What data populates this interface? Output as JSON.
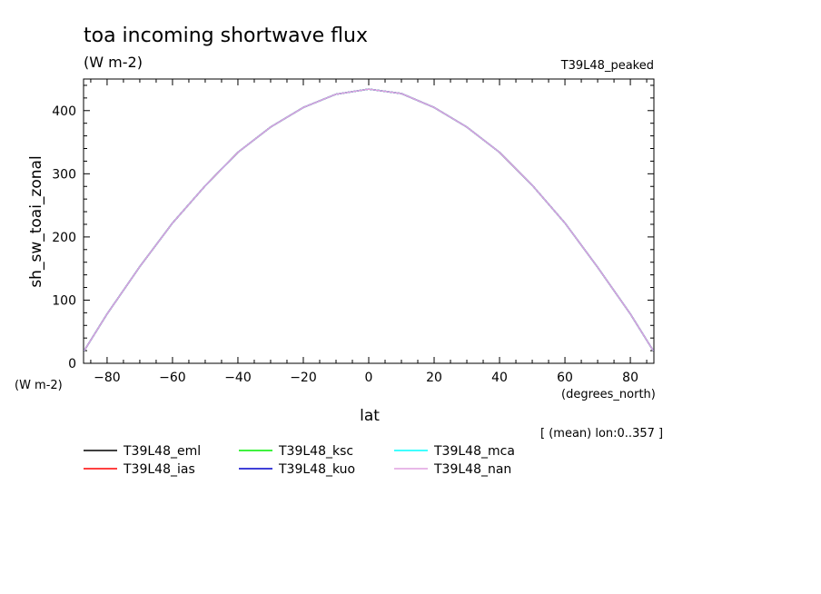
{
  "header": {
    "title": "toa incoming shortwave flux",
    "units": "(W m-2)",
    "experiment": "T39L48_peaked",
    "y_units": "(W m-2)",
    "x_units": "(degrees_north)",
    "region": "[ (mean) lon:0..357 ]"
  },
  "chart_data": {
    "type": "line",
    "xlabel": "lat",
    "ylabel": "sh_sw_toai_zonal",
    "xlim": [
      -87.2,
      87.2
    ],
    "ylim": [
      0,
      450
    ],
    "xticks": [
      -80,
      -60,
      -40,
      -20,
      0,
      20,
      40,
      60,
      80
    ],
    "yticks": [
      0,
      100,
      200,
      300,
      400
    ],
    "x": [
      -87,
      -80,
      -70,
      -60,
      -50,
      -40,
      -30,
      -20,
      -10,
      0,
      10,
      20,
      30,
      40,
      50,
      60,
      70,
      80,
      87
    ],
    "series": [
      {
        "name": "T39L48_eml",
        "color": "#000000",
        "values": [
          20,
          78,
          153,
          222,
          281,
          334,
          374,
          405,
          426,
          434,
          427,
          405,
          374,
          334,
          282,
          222,
          152,
          78,
          20
        ]
      },
      {
        "name": "T39L48_ias",
        "color": "#ff0000",
        "values": [
          20,
          78,
          153,
          222,
          281,
          334,
          374,
          405,
          426,
          434,
          427,
          405,
          374,
          334,
          282,
          222,
          152,
          78,
          20
        ]
      },
      {
        "name": "T39L48_ksc",
        "color": "#00ee00",
        "values": [
          20,
          78,
          153,
          222,
          281,
          334,
          374,
          405,
          426,
          434,
          427,
          405,
          374,
          334,
          282,
          222,
          152,
          78,
          20
        ]
      },
      {
        "name": "T39L48_kuo",
        "color": "#0000cc",
        "values": [
          20,
          78,
          153,
          222,
          281,
          334,
          374,
          405,
          426,
          434,
          427,
          405,
          374,
          334,
          282,
          222,
          152,
          78,
          20
        ]
      },
      {
        "name": "T39L48_mca",
        "color": "#00ffff",
        "values": [
          20,
          78,
          153,
          222,
          281,
          334,
          374,
          405,
          426,
          434,
          427,
          405,
          374,
          334,
          282,
          222,
          152,
          78,
          20
        ]
      },
      {
        "name": "T39L48_nan",
        "color": "#e0a0e0",
        "values": [
          20,
          78,
          153,
          222,
          281,
          334,
          374,
          405,
          426,
          434,
          427,
          405,
          374,
          334,
          282,
          222,
          152,
          78,
          20
        ]
      }
    ],
    "grid": false,
    "legend_position": "bottom-left"
  }
}
